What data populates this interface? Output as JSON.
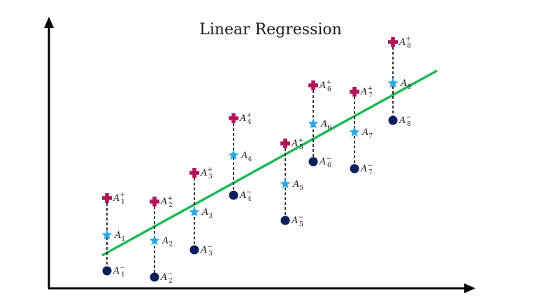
{
  "title": "Linear Regression",
  "colors": {
    "axis": "#000000",
    "regression_line": "#1db954",
    "upper_marker": "#b0155a",
    "center_marker": "#29a8e6",
    "lower_marker": "#0b1f5c",
    "interval": "#000000"
  },
  "icons": {
    "upper": "plus-icon",
    "center": "star-icon",
    "lower": "dot-icon"
  },
  "points": [
    {
      "name": "A",
      "index": "1",
      "upper_sup": "+",
      "lower_sup": "−"
    },
    {
      "name": "A",
      "index": "2",
      "upper_sup": "+",
      "lower_sup": "−"
    },
    {
      "name": "A",
      "index": "3",
      "upper_sup": "+",
      "lower_sup": "−"
    },
    {
      "name": "A",
      "index": "4",
      "upper_sup": "+",
      "lower_sup": "−"
    },
    {
      "name": "A",
      "index": "5",
      "upper_sup": "+",
      "lower_sup": "−"
    },
    {
      "name": "A",
      "index": "6",
      "upper_sup": "+",
      "lower_sup": "−"
    },
    {
      "name": "A",
      "index": "7",
      "upper_sup": "+",
      "lower_sup": "−"
    },
    {
      "name": "A",
      "index": "8",
      "upper_sup": "+",
      "lower_sup": "−"
    }
  ]
}
